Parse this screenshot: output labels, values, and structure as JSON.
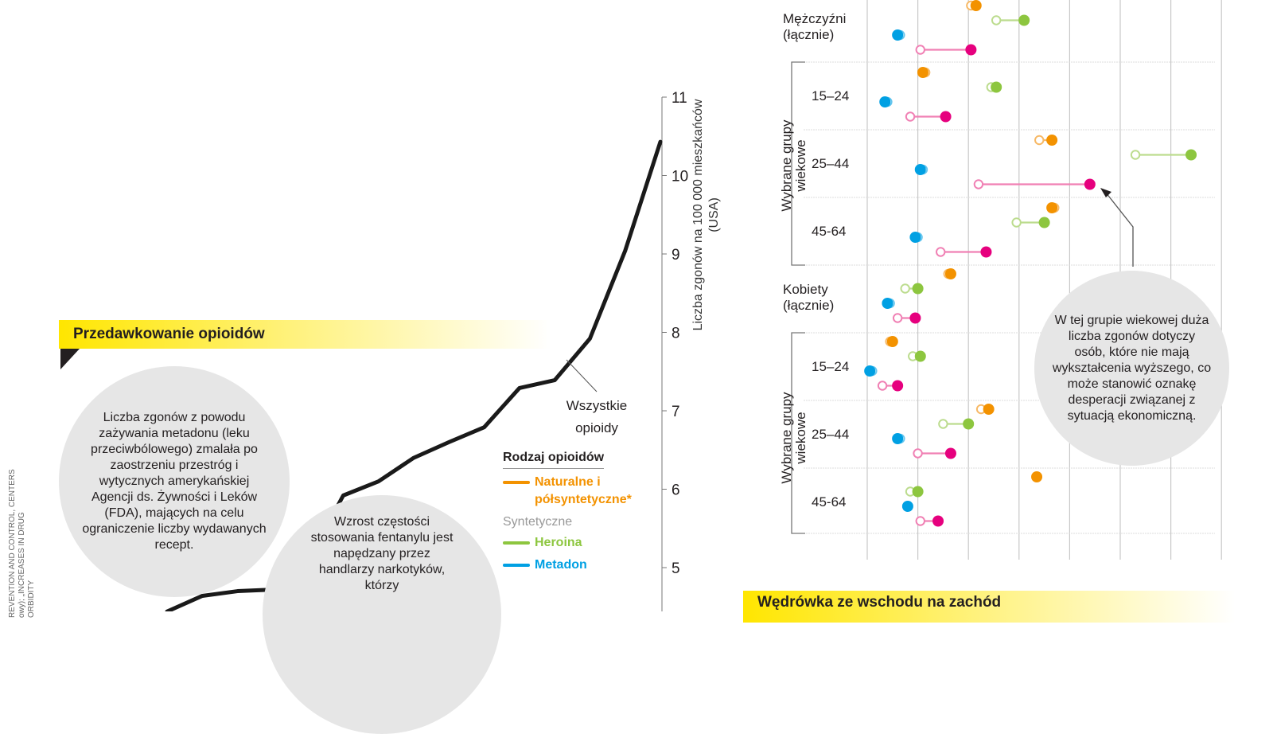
{
  "left_panel": {
    "banner_title": "Przedawkowanie opioidów",
    "source_lines": [
      "REVENTION AND CONTROL, CENTERS",
      "owy); „INCREASES IN DRUG",
      "ORBIDITY"
    ],
    "bubble_methadone": "Liczba zgonów z powodu zażywania metadonu (leku przeciwbólowego) zmalała po zaostrzeniu przestróg i wytycznych amerykańskiej Agencji ds. Żywności i Leków (FDA), mających na celu ograniczenie liczby wydawanych recept.",
    "bubble_fentanyl": "Wzrost częstości stosowania fentanylu jest napędzany przez handlarzy narkotyków, którzy",
    "legend": {
      "title": "Rodzaj opioidów",
      "natural": "Naturalne i półsyntetyczne*",
      "synthetic_header": "Syntetyczne",
      "heroin": "Heroina",
      "methadone": "Metadon"
    }
  },
  "right_panel": {
    "groups": {
      "men": "Mężczyźni (łącznie)",
      "women": "Kobiety (łącznie)",
      "age_groups_label": "Wybrane grupy wiekowe",
      "ages": [
        "15–24",
        "25–44",
        "45-64"
      ]
    },
    "callout": "W tej grupie wiekowej duża liczba zgonów dotyczy osób, które nie mają wykształcenia wyższego, co może stanowić oznakę desperacji związanej z sytuacją ekonomiczną.",
    "next_banner": "Wędrówka ze wschodu na zachód"
  },
  "colors": {
    "natural": "#f39200",
    "heroin": "#8dc63f",
    "methadone": "#00a0e3",
    "synthetic_other": "#e6007e",
    "synthetic_other_light": "#f080b4",
    "banner": "#ffe600",
    "line": "#1a1a1a",
    "bubble": "#e6e6e6"
  },
  "chart_data": [
    {
      "type": "line",
      "title": "Przedawkowanie opioidów",
      "ylabel": "Liczba zgonów na 100 000 mieszkańców (USA)",
      "ylim": [
        4.4,
        11
      ],
      "yticks": [
        5,
        6,
        7,
        8,
        9,
        10,
        11
      ],
      "series": [
        {
          "name": "Wszystkie opioidy",
          "values": [
            4.44,
            4.64,
            4.7,
            4.72,
            5.08,
            5.92,
            6.1,
            6.4,
            6.6,
            6.79,
            7.29,
            7.39,
            7.92,
            9.04,
            10.43
          ]
        }
      ],
      "annotation": "Wszystkie opioidy"
    },
    {
      "type": "scatter",
      "subtype": "dumbbell",
      "note": "open circle = earlier value, filled circle = later value; x in gridline units (gridlines 0..7)",
      "xgrid": [
        0,
        1,
        2,
        3,
        4,
        5,
        6,
        7
      ],
      "rows": [
        {
          "group": "Mężczyźni (łącznie)",
          "series": "Naturalne i półsyntetyczne",
          "from": 2.05,
          "to": 2.15
        },
        {
          "group": "Mężczyźni (łącznie)",
          "series": "Heroina",
          "from": 2.55,
          "to": 3.1
        },
        {
          "group": "Mężczyźni (łącznie)",
          "series": "Metadon",
          "from": 0.65,
          "to": 0.6
        },
        {
          "group": "Mężczyźni (łącznie)",
          "series": "Inne syntetyczne",
          "from": 1.05,
          "to": 2.05
        },
        {
          "group": "15–24 (M)",
          "series": "Naturalne i półsyntetyczne",
          "from": 1.15,
          "to": 1.1
        },
        {
          "group": "15–24 (M)",
          "series": "Heroina",
          "from": 2.45,
          "to": 2.55
        },
        {
          "group": "15–24 (M)",
          "series": "Metadon",
          "from": 0.4,
          "to": 0.35
        },
        {
          "group": "15–24 (M)",
          "series": "Inne syntetyczne",
          "from": 0.85,
          "to": 1.55
        },
        {
          "group": "25–44 (M)",
          "series": "Naturalne i półsyntetyczne",
          "from": 3.4,
          "to": 3.65
        },
        {
          "group": "25–44 (M)",
          "series": "Heroina",
          "from": 5.3,
          "to": 6.4
        },
        {
          "group": "25–44 (M)",
          "series": "Metadon",
          "from": 1.1,
          "to": 1.05
        },
        {
          "group": "25–44 (M)",
          "series": "Inne syntetyczne",
          "from": 2.2,
          "to": 4.4
        },
        {
          "group": "45-64 (M)",
          "series": "Naturalne i półsyntetyczne",
          "from": 3.7,
          "to": 3.65
        },
        {
          "group": "45-64 (M)",
          "series": "Heroina",
          "from": 2.95,
          "to": 3.5
        },
        {
          "group": "45-64 (M)",
          "series": "Metadon",
          "from": 1.0,
          "to": 0.95
        },
        {
          "group": "45-64 (M)",
          "series": "Inne syntetyczne",
          "from": 1.45,
          "to": 2.35
        },
        {
          "group": "Kobiety (łącznie)",
          "series": "Naturalne i półsyntetyczne",
          "from": 1.6,
          "to": 1.65
        },
        {
          "group": "Kobiety (łącznie)",
          "series": "Heroina",
          "from": 0.75,
          "to": 1.0
        },
        {
          "group": "Kobiety (łącznie)",
          "series": "Metadon",
          "from": 0.45,
          "to": 0.4
        },
        {
          "group": "Kobiety (łącznie)",
          "series": "Inne syntetyczne",
          "from": 0.6,
          "to": 0.95
        },
        {
          "group": "15–24 (K)",
          "series": "Naturalne i półsyntetyczne",
          "from": 0.45,
          "to": 0.5
        },
        {
          "group": "15–24 (K)",
          "series": "Heroina",
          "from": 0.9,
          "to": 1.05
        },
        {
          "group": "15–24 (K)",
          "series": "Metadon",
          "from": 0.1,
          "to": 0.05
        },
        {
          "group": "15–24 (K)",
          "series": "Inne syntetyczne",
          "from": 0.3,
          "to": 0.6
        },
        {
          "group": "25–44 (K)",
          "series": "Naturalne i półsyntetyczne",
          "from": 2.25,
          "to": 2.4
        },
        {
          "group": "25–44 (K)",
          "series": "Heroina",
          "from": 1.5,
          "to": 2.0
        },
        {
          "group": "25–44 (K)",
          "series": "Metadon",
          "from": 0.65,
          "to": 0.6
        },
        {
          "group": "25–44 (K)",
          "series": "Inne syntetyczne",
          "from": 1.0,
          "to": 1.65
        },
        {
          "group": "45-64 (K)",
          "series": "Naturalne i półsyntetyczne",
          "from": 3.35,
          "to": 3.35
        },
        {
          "group": "45-64 (K)",
          "series": "Heroina",
          "from": 0.85,
          "to": 1.0
        },
        {
          "group": "45-64 (K)",
          "series": "Metadon",
          "from": 0.8,
          "to": 0.8
        },
        {
          "group": "45-64 (K)",
          "series": "Inne syntetyczne",
          "from": 1.05,
          "to": 1.4
        }
      ]
    }
  ]
}
